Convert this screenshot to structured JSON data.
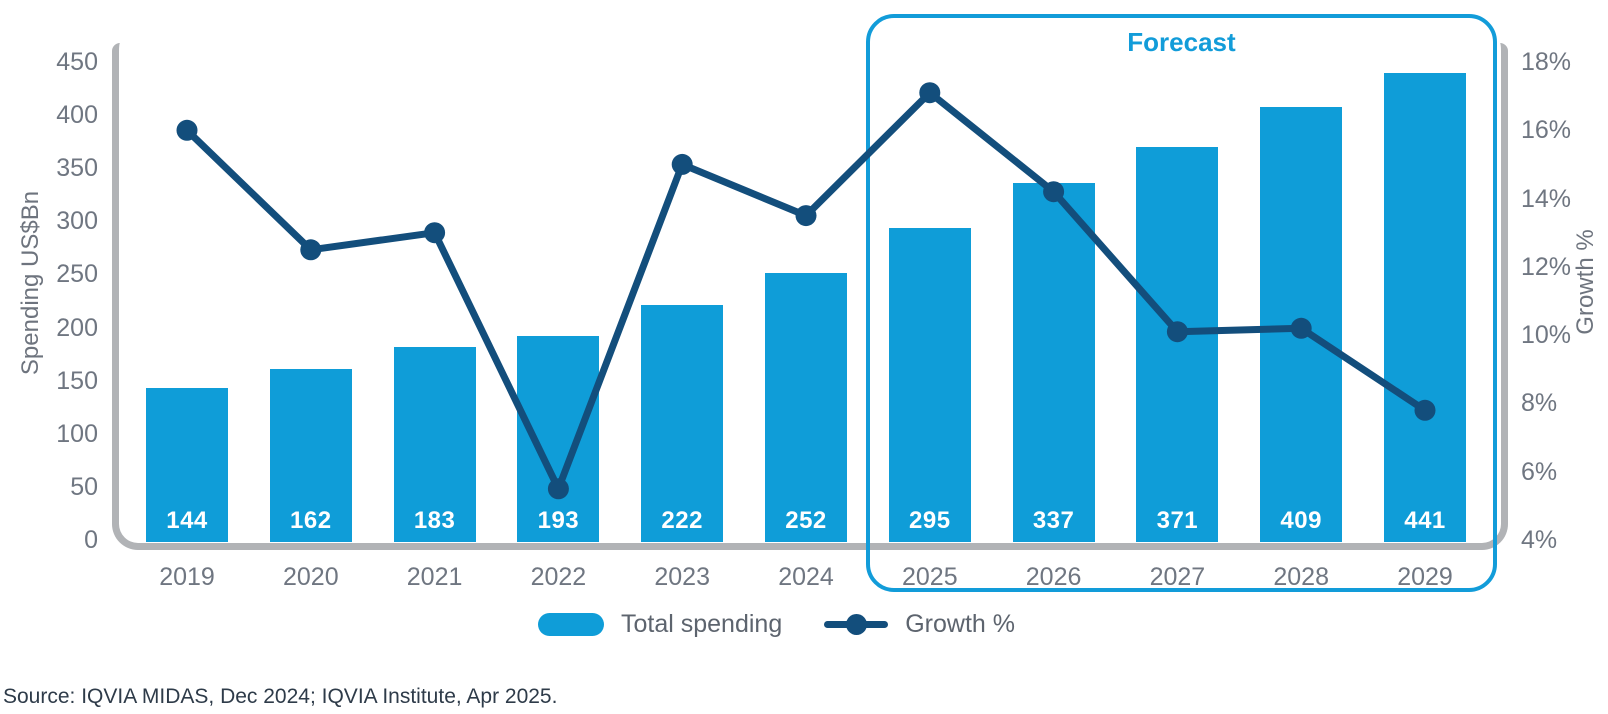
{
  "chart_data": {
    "type": "bar+line",
    "categories": [
      "2019",
      "2020",
      "2021",
      "2022",
      "2023",
      "2024",
      "2025",
      "2026",
      "2027",
      "2028",
      "2029"
    ],
    "series": [
      {
        "name": "Total spending",
        "type": "bar",
        "axis": "left",
        "values": [
          144,
          162,
          183,
          193,
          222,
          252,
          295,
          337,
          371,
          409,
          441
        ]
      },
      {
        "name": "Growth %",
        "type": "line",
        "axis": "right",
        "values": [
          16.0,
          12.5,
          13.0,
          5.5,
          15.0,
          13.5,
          17.1,
          14.2,
          10.1,
          10.2,
          7.8
        ]
      }
    ],
    "left_axis": {
      "title": "Spending US$Bn",
      "ticks": [
        "450",
        "400",
        "350",
        "300",
        "250",
        "200",
        "150",
        "100",
        "50",
        "0"
      ],
      "range": [
        0,
        450
      ]
    },
    "right_axis": {
      "title": "Growth %",
      "ticks": [
        "18%",
        "16%",
        "14%",
        "12%",
        "10%",
        "8%",
        "6%",
        "4%"
      ],
      "range": [
        4,
        18
      ]
    },
    "forecast_label": "Forecast",
    "forecast_span": [
      "2025",
      "2029"
    ],
    "legend": {
      "bar_label": "Total spending",
      "line_label": "Growth %"
    },
    "legend_position": "bottom",
    "grid": "off",
    "bar_value_labels": "inside-bottom"
  },
  "colors": {
    "bar_blue": "#0f9dd8",
    "line_dark_blue": "#134e7c",
    "forecast_blue": "#129cd9",
    "frame_gray": "#b1b3b6",
    "tick_text_gray": "#6f7681",
    "source_text": "#2e3b49"
  },
  "source_note": "Source: IQVIA MIDAS, Dec 2024; IQVIA Institute, Apr 2025."
}
